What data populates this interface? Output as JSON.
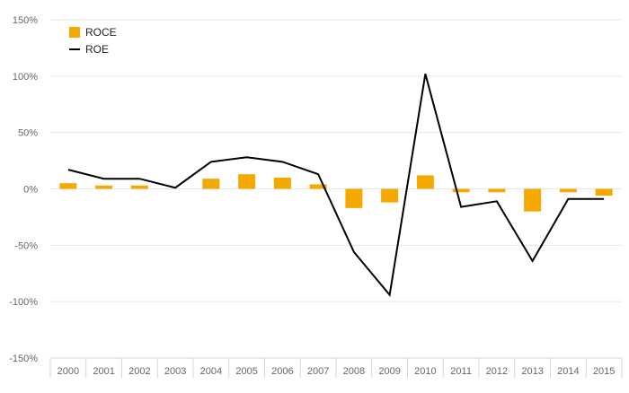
{
  "chart_data": {
    "type": "bar",
    "title": "",
    "xlabel": "",
    "ylabel": "",
    "categories": [
      "2000",
      "2001",
      "2002",
      "2003",
      "2004",
      "2005",
      "2006",
      "2007",
      "2008",
      "2009",
      "2010",
      "2011",
      "2012",
      "2013",
      "2014",
      "2015"
    ],
    "y_ticks": [
      "150%",
      "100%",
      "50%",
      "0%",
      "-50%",
      "-100%",
      "-150%"
    ],
    "ylim": [
      -150,
      150
    ],
    "y_unit": "%",
    "grid": true,
    "legend_position": "top-left",
    "series": [
      {
        "name": "ROCE",
        "type": "bar",
        "color": "#f5a800",
        "values": [
          5,
          3,
          3,
          0,
          9,
          13,
          10,
          4,
          -17,
          -12,
          12,
          -3,
          -3,
          -20,
          -3,
          -6
        ]
      },
      {
        "name": "ROE",
        "type": "line",
        "color": "#000000",
        "values": [
          17,
          9,
          9,
          1,
          24,
          28,
          24,
          13,
          -56,
          -94,
          102,
          -16,
          -11,
          -64,
          -9,
          -9
        ]
      }
    ]
  }
}
